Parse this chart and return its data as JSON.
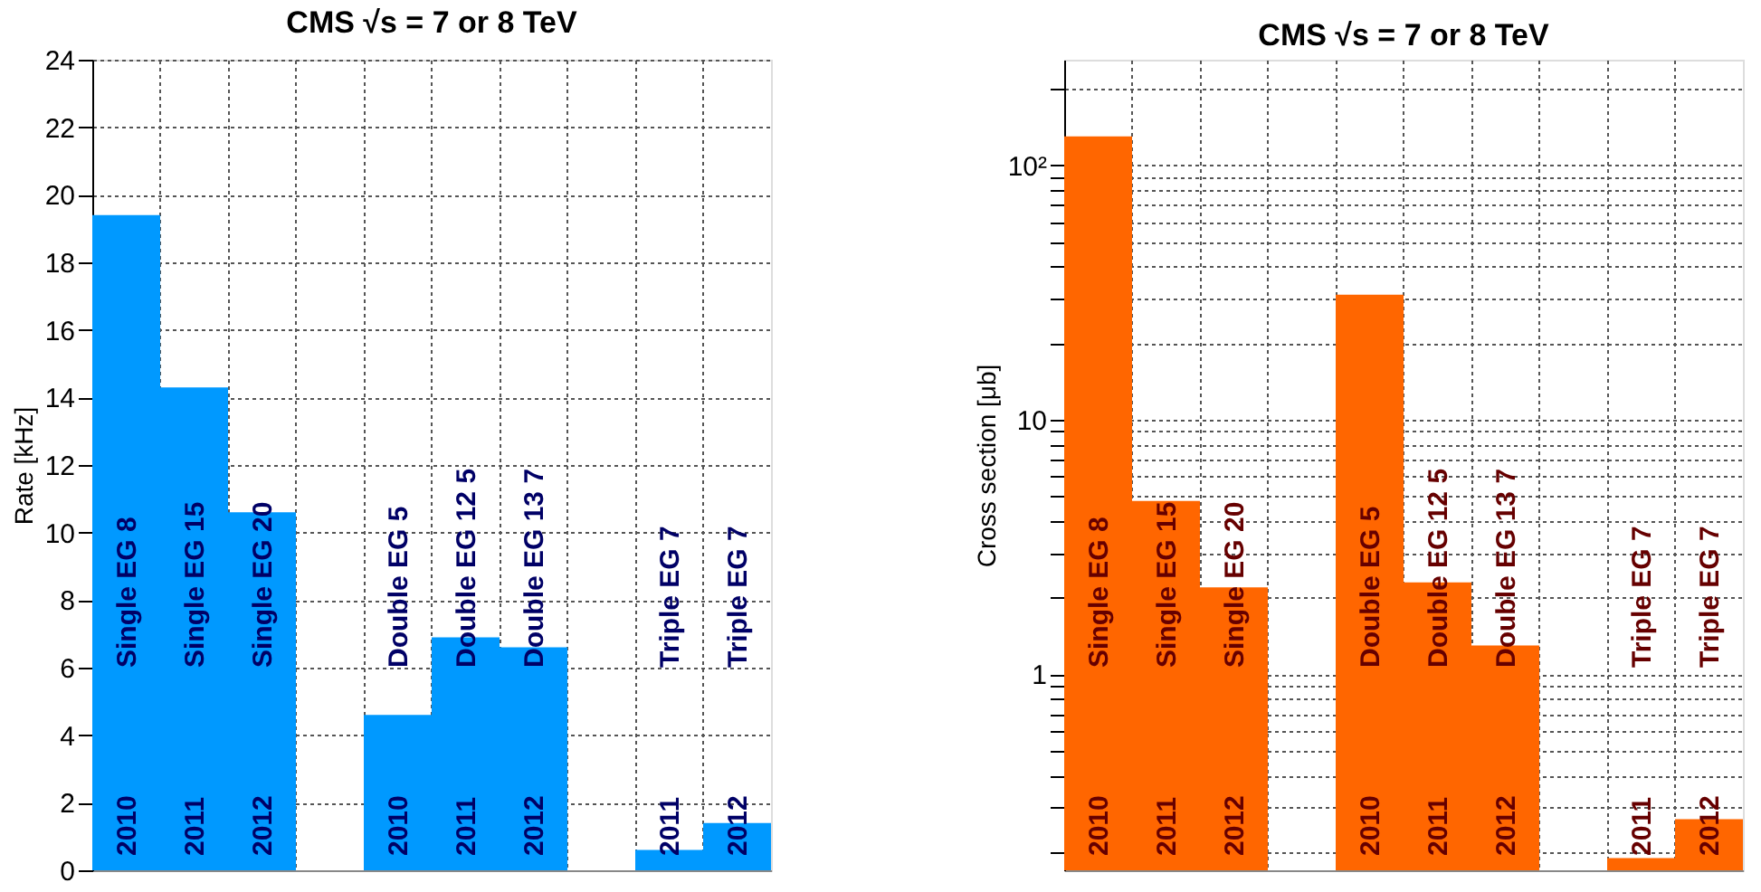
{
  "chart_data": [
    {
      "type": "bar",
      "title": "CMS  √s = 7 or 8 TeV",
      "ylabel": "Rate [kHz]",
      "categories": [
        "2010 Single EG 8",
        "2011 Single EG 15",
        "2012 Single EG 20",
        null,
        "2010 Double EG 5",
        "2011 Double EG 12 5",
        "2012 Double EG 13 7",
        null,
        "2011 Triple EG 7",
        "2012 Triple EG 7"
      ],
      "values": [
        19.4,
        14.3,
        10.6,
        null,
        4.6,
        6.9,
        6.6,
        null,
        0.6,
        1.4
      ],
      "color": "#0099ff",
      "ylim": [
        0,
        24
      ],
      "yticks": [
        0,
        2,
        4,
        6,
        8,
        10,
        12,
        14,
        16,
        18,
        20,
        22,
        24
      ],
      "grid": true
    },
    {
      "type": "bar",
      "title": "CMS  √s = 7 or 8 TeV",
      "ylabel": "Cross section [μb]",
      "log": true,
      "categories": [
        "2010 Single EG 8",
        "2011 Single EG 15",
        "2012 Single EG 20",
        null,
        "2010 Double EG 5",
        "2011 Double EG 12 5",
        "2012 Double EG 13 7",
        null,
        "2011 Triple EG 7",
        "2012 Triple EG 7"
      ],
      "values": [
        130,
        4.8,
        2.2,
        null,
        31,
        2.3,
        1.3,
        null,
        0.19,
        0.27
      ],
      "color": "#ff6600",
      "ylim": [
        0.17,
        260
      ],
      "yticks": [
        {
          "value": 0.2,
          "label": null
        },
        {
          "value": 0.3,
          "label": null
        },
        {
          "value": 0.4,
          "label": null
        },
        {
          "value": 0.5,
          "label": null
        },
        {
          "value": 0.6,
          "label": null
        },
        {
          "value": 0.7,
          "label": null
        },
        {
          "value": 0.8,
          "label": null
        },
        {
          "value": 0.9,
          "label": null
        },
        1,
        {
          "value": 2,
          "label": null
        },
        {
          "value": 3,
          "label": null
        },
        {
          "value": 4,
          "label": null
        },
        {
          "value": 5,
          "label": null
        },
        {
          "value": 6,
          "label": null
        },
        {
          "value": 7,
          "label": null
        },
        {
          "value": 8,
          "label": null
        },
        {
          "value": 9,
          "label": null
        },
        10,
        {
          "value": 20,
          "label": null
        },
        {
          "value": 30,
          "label": null
        },
        {
          "value": 40,
          "label": null
        },
        {
          "value": 50,
          "label": null
        },
        {
          "value": 60,
          "label": null
        },
        {
          "value": 70,
          "label": null
        },
        {
          "value": 80,
          "label": null
        },
        {
          "value": 90,
          "label": null
        },
        {
          "value": 100,
          "label": "10²"
        },
        {
          "value": 200,
          "label": null
        }
      ],
      "grid": true
    }
  ]
}
